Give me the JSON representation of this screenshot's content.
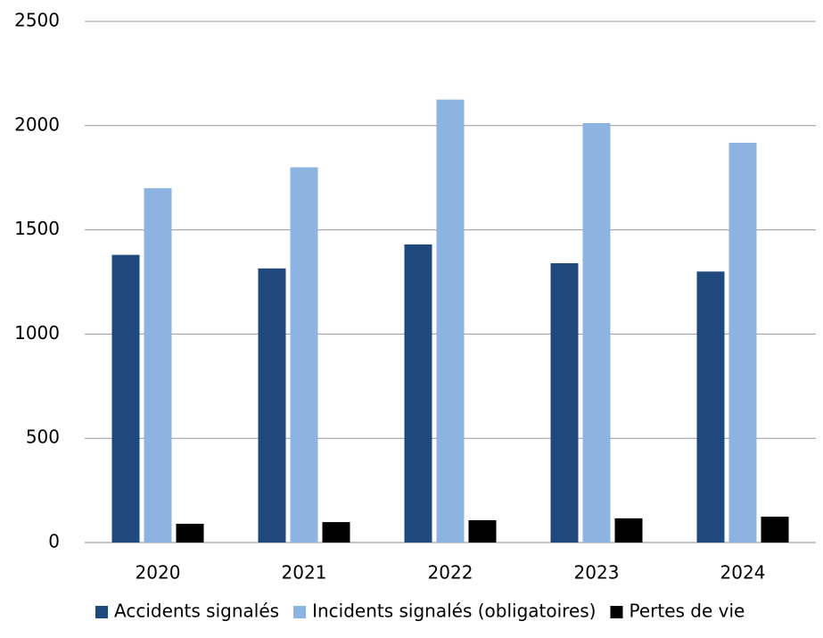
{
  "chart_data": {
    "type": "bar",
    "categories": [
      "2020",
      "2021",
      "2022",
      "2023",
      "2024"
    ],
    "series": [
      {
        "name": "Accidents signalés",
        "color": "#1f497d",
        "values": [
          1380,
          1315,
          1430,
          1340,
          1300
        ]
      },
      {
        "name": "Incidents signalés (obligatoires)",
        "color": "#8db3e2",
        "values": [
          1700,
          1800,
          2125,
          2012,
          1918
        ]
      },
      {
        "name": "Pertes de vie",
        "color": "#000000",
        "values": [
          90,
          98,
          107,
          116,
          124
        ]
      }
    ],
    "ylim": [
      0,
      2500
    ],
    "yticks": [
      0,
      500,
      1000,
      1500,
      2000,
      2500
    ],
    "grid": true,
    "legend": "bottom"
  }
}
